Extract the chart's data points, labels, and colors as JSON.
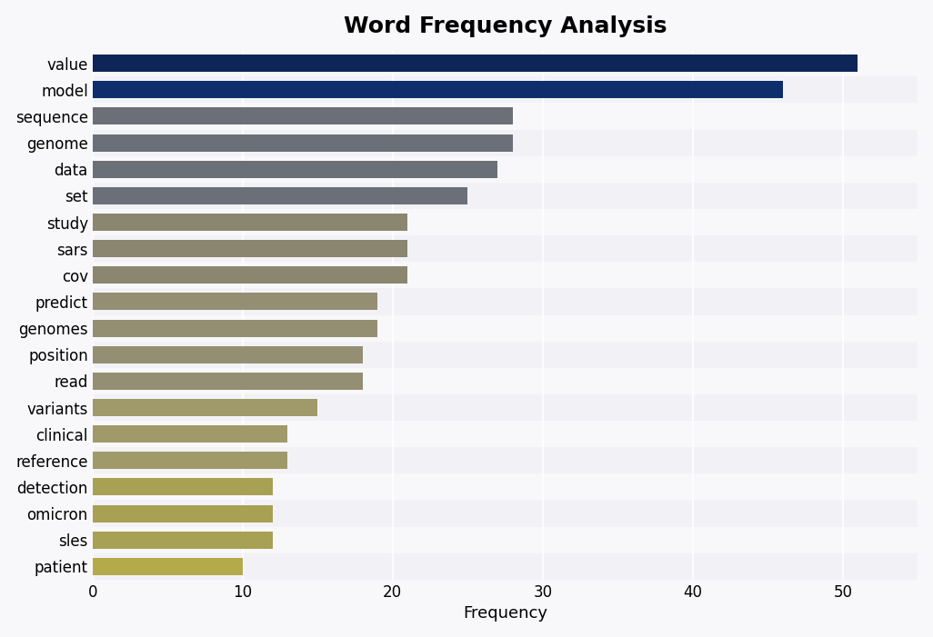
{
  "title": "Word Frequency Analysis",
  "categories": [
    "value",
    "model",
    "sequence",
    "genome",
    "data",
    "set",
    "study",
    "sars",
    "cov",
    "predict",
    "genomes",
    "position",
    "read",
    "variants",
    "clinical",
    "reference",
    "detection",
    "omicron",
    "sles",
    "patient"
  ],
  "values": [
    51,
    46,
    28,
    28,
    27,
    25,
    21,
    21,
    21,
    19,
    19,
    18,
    18,
    15,
    13,
    13,
    12,
    12,
    12,
    10
  ],
  "bar_colors": [
    "#0d2557",
    "#0d2e6b",
    "#6b6f78",
    "#6b6f78",
    "#6b6f78",
    "#6b6f78",
    "#8a8670",
    "#8a8670",
    "#8a8670",
    "#948f72",
    "#948f72",
    "#948f72",
    "#948f72",
    "#a09a6a",
    "#a09a6a",
    "#a09a6a",
    "#a8a052",
    "#a8a052",
    "#a8a052",
    "#b5aa4a"
  ],
  "xlabel": "Frequency",
  "ylabel": "",
  "xlim": [
    0,
    55
  ],
  "xticks": [
    0,
    10,
    20,
    30,
    40,
    50
  ],
  "background_color": "#f8f8fa",
  "plot_background_color": "#f8f8fa",
  "row_colors": [
    "#f8f8fa",
    "#f2f2f6"
  ],
  "title_fontsize": 18,
  "label_fontsize": 13,
  "tick_fontsize": 12,
  "bar_height": 0.65
}
